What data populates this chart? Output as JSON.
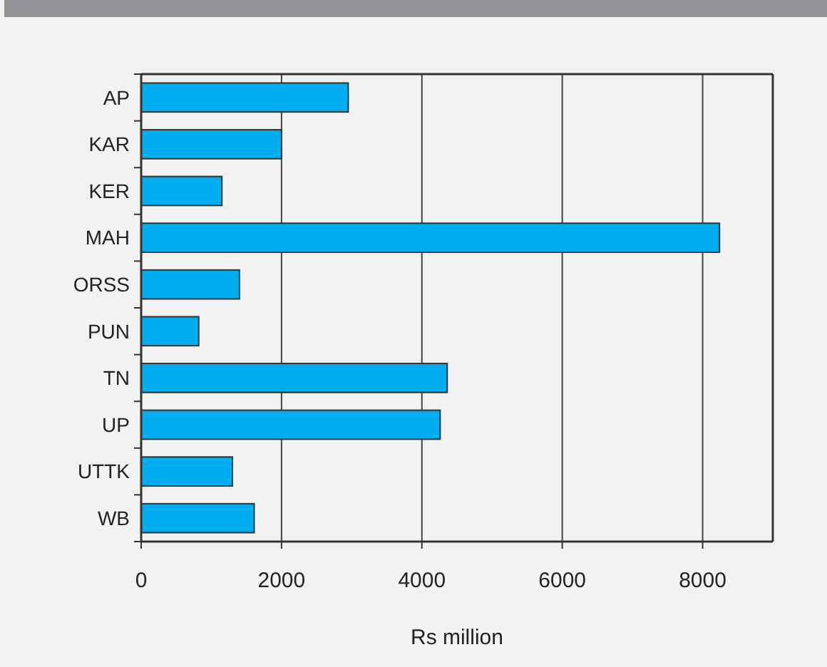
{
  "chart_data": {
    "type": "bar",
    "orientation": "horizontal",
    "xlabel": "Rs million",
    "categories": [
      "AP",
      "KAR",
      "KER",
      "MAH",
      "ORSS",
      "PUN",
      "TN",
      "UP",
      "UTTK",
      "WB"
    ],
    "values": [
      2950,
      2000,
      1150,
      8240,
      1400,
      820,
      4360,
      4260,
      1300,
      1610
    ],
    "color": "#00aeef",
    "xlim": [
      0,
      9000
    ],
    "xticks": [
      0,
      2000,
      4000,
      6000,
      8000
    ],
    "grid": "x"
  }
}
